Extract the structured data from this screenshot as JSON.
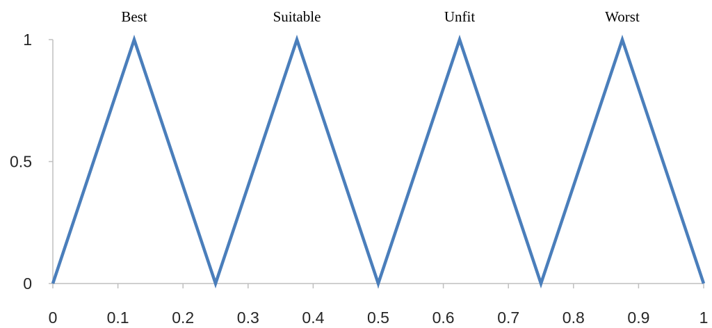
{
  "chart_data": {
    "type": "line",
    "title": "",
    "xlabel": "",
    "ylabel": "",
    "xlim": [
      0,
      1
    ],
    "ylim": [
      0,
      1
    ],
    "x_ticks": [
      "0",
      "0.1",
      "0.2",
      "0.3",
      "0.4",
      "0.5",
      "0.6",
      "0.7",
      "0.8",
      "0.9",
      "1"
    ],
    "y_ticks": [
      "0",
      "0.5",
      "1"
    ],
    "grid": false,
    "legend": "none",
    "series": [
      {
        "color": "#4a7ebb",
        "points": [
          {
            "x": 0,
            "y": 0
          },
          {
            "x": 0.125,
            "y": 1
          },
          {
            "x": 0.25,
            "y": 0
          },
          {
            "x": 0.375,
            "y": 1
          },
          {
            "x": 0.5,
            "y": 0
          },
          {
            "x": 0.625,
            "y": 1
          },
          {
            "x": 0.75,
            "y": 0
          },
          {
            "x": 0.875,
            "y": 1
          },
          {
            "x": 1,
            "y": 0
          }
        ]
      }
    ],
    "annotations": [
      {
        "text": "Best",
        "x": 0.125,
        "y": 1
      },
      {
        "text": "Suitable",
        "x": 0.375,
        "y": 1
      },
      {
        "text": "Unfit",
        "x": 0.625,
        "y": 1
      },
      {
        "text": "Worst",
        "x": 0.875,
        "y": 1
      }
    ]
  }
}
